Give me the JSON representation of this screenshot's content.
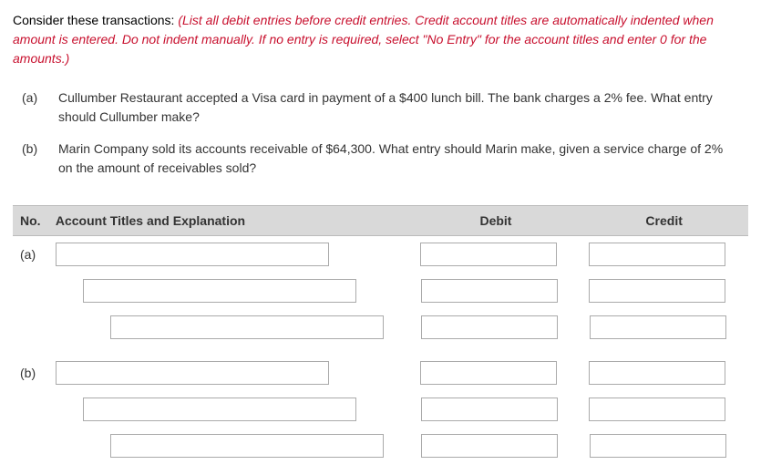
{
  "intro": {
    "black": "Consider these transactions: ",
    "red": "(List all debit entries before credit entries. Credit account titles are automatically indented when amount is entered. Do not indent manually. If no entry is required, select \"No Entry\" for the account titles and enter 0 for the amounts.)"
  },
  "scenarios": [
    {
      "label": "(a)",
      "text": "Cullumber Restaurant accepted a Visa card in payment of a $400 lunch bill. The bank charges a 2% fee. What entry should Cullumber make?"
    },
    {
      "label": "(b)",
      "text": "Marin Company sold its accounts receivable of $64,300. What entry should Marin make, given a service charge of 2% on the amount of receivables sold?"
    }
  ],
  "table": {
    "headers": {
      "no": "No.",
      "acct": "Account Titles and Explanation",
      "debit": "Debit",
      "credit": "Credit"
    },
    "groups": [
      {
        "no": "(a)",
        "rows": [
          {
            "indent": 0,
            "acct": "",
            "debit": "",
            "credit": ""
          },
          {
            "indent": 1,
            "acct": "",
            "debit": "",
            "credit": ""
          },
          {
            "indent": 2,
            "acct": "",
            "debit": "",
            "credit": ""
          }
        ]
      },
      {
        "no": "(b)",
        "rows": [
          {
            "indent": 0,
            "acct": "",
            "debit": "",
            "credit": ""
          },
          {
            "indent": 1,
            "acct": "",
            "debit": "",
            "credit": ""
          },
          {
            "indent": 2,
            "acct": "",
            "debit": "",
            "credit": ""
          }
        ]
      }
    ]
  },
  "styling": {
    "red_color": "#c8102e",
    "header_bg": "#d9d9d9",
    "font_size_body": 14,
    "input_border": "#aaaaaa",
    "acct_input_width": 300,
    "num_input_width": 150
  }
}
